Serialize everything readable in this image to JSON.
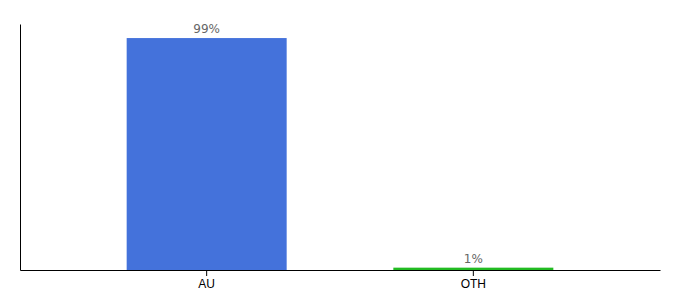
{
  "chart_data": {
    "type": "bar",
    "categories": [
      "AU",
      "OTH"
    ],
    "values": [
      99,
      1
    ],
    "value_labels": [
      "99%",
      "1%"
    ],
    "colors": [
      "#4472db",
      "#22bb22"
    ],
    "ylim": [
      0,
      105
    ],
    "data_labels": true,
    "tick_labels": "x",
    "grid": false
  }
}
